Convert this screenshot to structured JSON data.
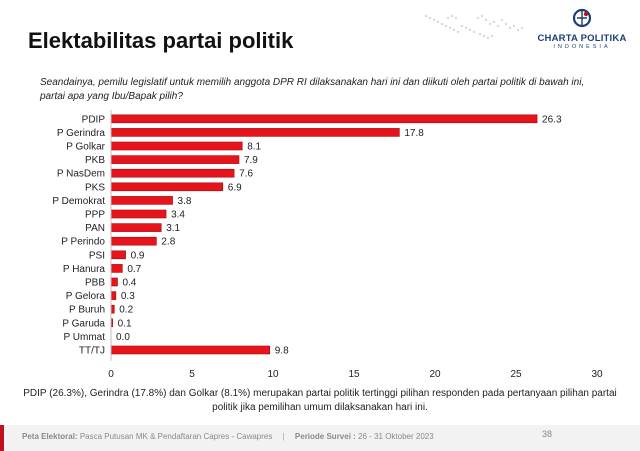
{
  "page": {
    "title": "Elektabilitas partai politik",
    "question": "Seandainya, pemilu legislatif untuk memilih anggota DPR RI dilaksanakan hari ini dan diikuti oleh partai politik di bawah ini, partai apa yang Ibu/Bapak pilih?",
    "caption": "PDIP (26.3%), Gerindra (17.8%) dan Golkar (8.1%) merupakan partai politik tertinggi pilihan responden pada pertanyaan pilihan partai politik jika pemilihan umum dilaksanakan hari ini.",
    "page_number": "38"
  },
  "logo": {
    "brand": "CHARTA POLITIKA",
    "sub": "INDONESIA",
    "icon": "globe-logo-icon"
  },
  "footer": {
    "label_bold": "Peta Elektoral:",
    "label_text": "Pasca Putusan MK & Pendaftaran Capres - Cawapres",
    "separator": "|",
    "period_bold": "Periode Survei :",
    "period_text": "26 - 31 Oktober 2023"
  },
  "colors": {
    "bar": "#e8141c",
    "bar_border": "#9b0d12",
    "accent": "#c0111f",
    "brand": "#1d3f74"
  },
  "chart_data": {
    "type": "bar",
    "orientation": "horizontal",
    "categories": [
      "PDIP",
      "P Gerindra",
      "P Golkar",
      "PKB",
      "P NasDem",
      "PKS",
      "P Demokrat",
      "PPP",
      "PAN",
      "P Perindo",
      "PSI",
      "P Hanura",
      "PBB",
      "P Gelora",
      "P Buruh",
      "P Garuda",
      "P Ummat",
      "TT/TJ"
    ],
    "values": [
      26.3,
      17.8,
      8.1,
      7.9,
      7.6,
      6.9,
      3.8,
      3.4,
      3.1,
      2.8,
      0.9,
      0.7,
      0.4,
      0.3,
      0.2,
      0.1,
      0.0,
      9.8
    ],
    "value_labels": [
      "26.3",
      "17.8",
      "8.1",
      "7.9",
      "7.6",
      "6.9",
      "3.8",
      "3.4",
      "3.1",
      "2.8",
      "0.9",
      "0.7",
      "0.4",
      "0.3",
      "0.2",
      "0.1",
      "0.0",
      "9.8"
    ],
    "xlim": [
      0,
      30
    ],
    "xticks": [
      0,
      5,
      10,
      15,
      20,
      25,
      30
    ],
    "xtick_labels": [
      "0",
      "5",
      "10",
      "15",
      "20",
      "25",
      "30"
    ],
    "grid": false,
    "legend": "none"
  }
}
